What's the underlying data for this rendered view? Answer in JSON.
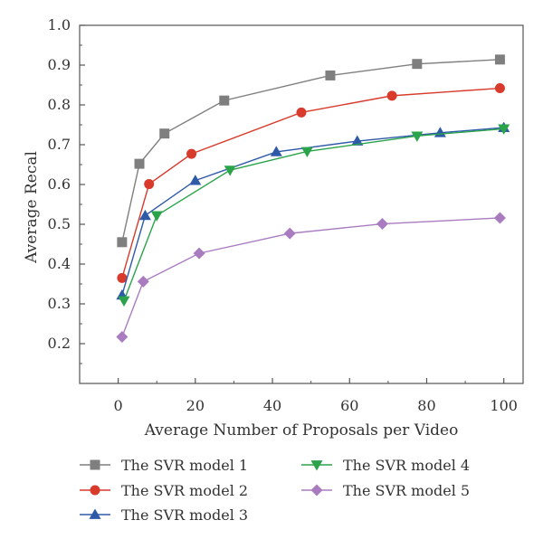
{
  "chart_data": {
    "type": "line",
    "title": "",
    "xlabel": "Average Number of Proposals per Video",
    "ylabel": "Average Recal",
    "xlim": [
      -10,
      105
    ],
    "ylim": [
      0.1,
      1.0
    ],
    "xticks": [
      0,
      20,
      40,
      60,
      80,
      100
    ],
    "yticks": [
      0.2,
      0.3,
      0.4,
      0.5,
      0.6,
      0.7,
      0.8,
      0.9,
      1.0
    ],
    "grid": false,
    "legend_position": "bottom",
    "series": [
      {
        "name": "The SVR model 1",
        "color": "#7f7f7f",
        "marker": "square",
        "x": [
          1,
          5.5,
          12,
          27.5,
          55,
          77.5,
          99
        ],
        "y": [
          0.455,
          0.652,
          0.728,
          0.811,
          0.874,
          0.903,
          0.914
        ]
      },
      {
        "name": "The SVR model 2",
        "color": "#d83a2b",
        "marker": "circle",
        "x": [
          1,
          8,
          19,
          47.5,
          71,
          99
        ],
        "y": [
          0.365,
          0.601,
          0.677,
          0.781,
          0.823,
          0.842
        ]
      },
      {
        "name": "The SVR model 3",
        "color": "#2e5aa8",
        "marker": "triangle-up",
        "x": [
          1,
          7,
          20,
          41,
          62,
          83.5,
          100
        ],
        "y": [
          0.322,
          0.522,
          0.61,
          0.682,
          0.709,
          0.73,
          0.743
        ]
      },
      {
        "name": "The SVR model 4",
        "color": "#2aa34a",
        "marker": "triangle-down",
        "x": [
          1.5,
          10,
          29,
          49,
          77.5,
          100
        ],
        "y": [
          0.308,
          0.522,
          0.636,
          0.683,
          0.722,
          0.74
        ]
      },
      {
        "name": "The SVR model 5",
        "color": "#a97cc0",
        "marker": "diamond",
        "x": [
          1,
          6.5,
          21,
          44.5,
          68.5,
          99
        ],
        "y": [
          0.217,
          0.356,
          0.427,
          0.477,
          0.501,
          0.516
        ]
      }
    ]
  }
}
